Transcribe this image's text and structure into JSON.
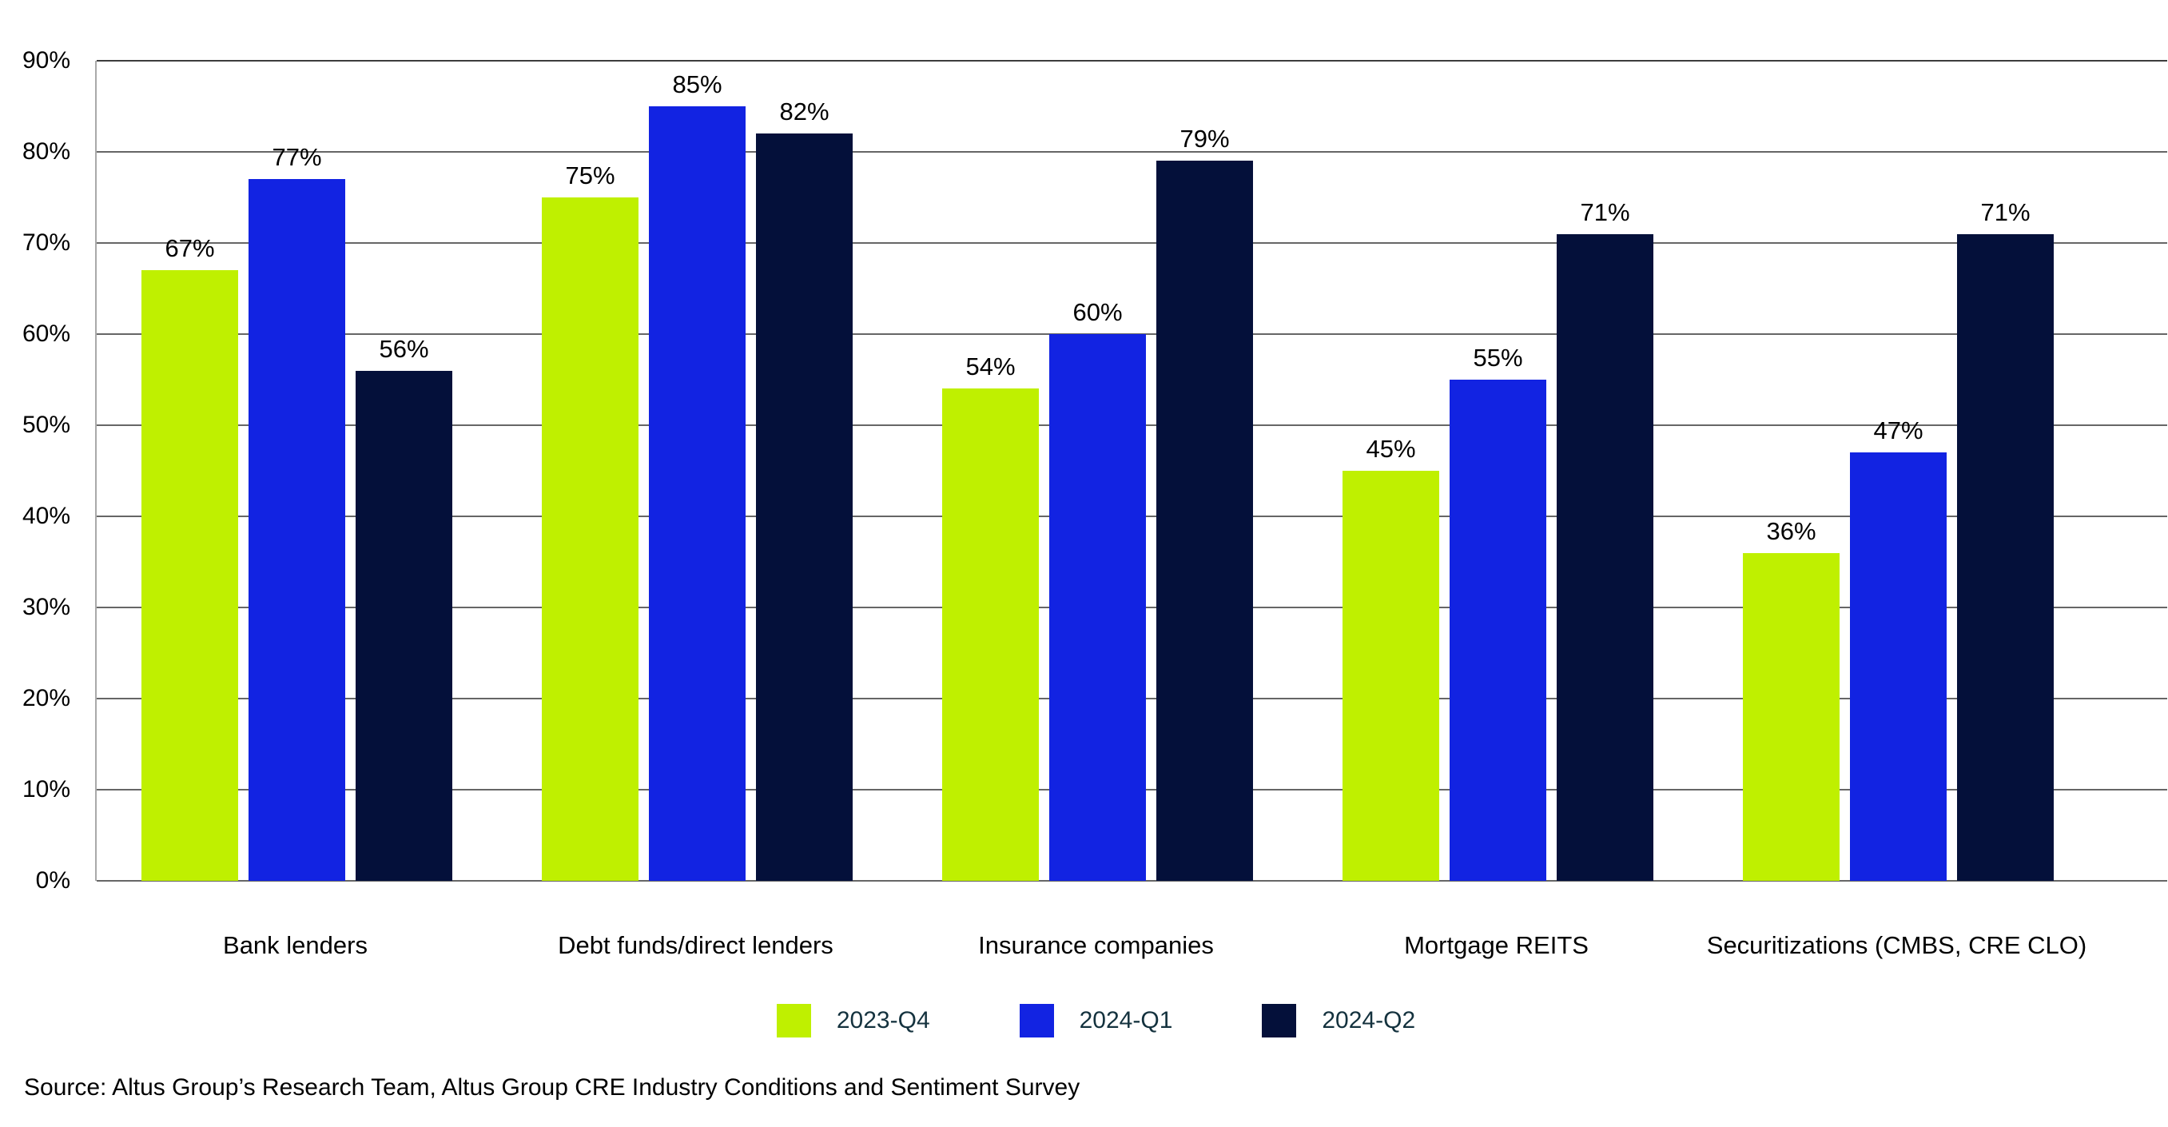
{
  "chart_data": {
    "type": "bar",
    "categories": [
      "Bank lenders",
      "Debt funds/direct lenders",
      "Insurance companies",
      "Mortgage REITS",
      "Securitizations (CMBS, CRE CLO)"
    ],
    "series": [
      {
        "name": "2023-Q4",
        "color": "#bff000",
        "values": [
          67,
          75,
          54,
          45,
          36
        ]
      },
      {
        "name": "2024-Q1",
        "color": "#1223e2",
        "values": [
          77,
          85,
          60,
          55,
          47
        ]
      },
      {
        "name": "2024-Q2",
        "color": "#04103a",
        "values": [
          56,
          82,
          79,
          71,
          71
        ]
      }
    ],
    "data_labels": true,
    "value_suffix": "%",
    "ylim": [
      0,
      90
    ],
    "ytick_step": 10,
    "yticks": [
      "0%",
      "10%",
      "20%",
      "30%",
      "40%",
      "50%",
      "60%",
      "70%",
      "80%",
      "90%"
    ],
    "grid": true,
    "legend_position": "bottom-center",
    "title": "",
    "xlabel": "",
    "ylabel": ""
  },
  "source_note": "Source: Altus Group’s Research Team, Altus Group CRE Industry Conditions and Sentiment Survey",
  "ui_colors": {
    "background": "#ffffff",
    "gridline": "#666666",
    "axis_line": "#a9a9a9",
    "tick_text": "#000000",
    "value_label_text": "#000000",
    "category_text": "#000000",
    "legend_text": "#14323e"
  }
}
